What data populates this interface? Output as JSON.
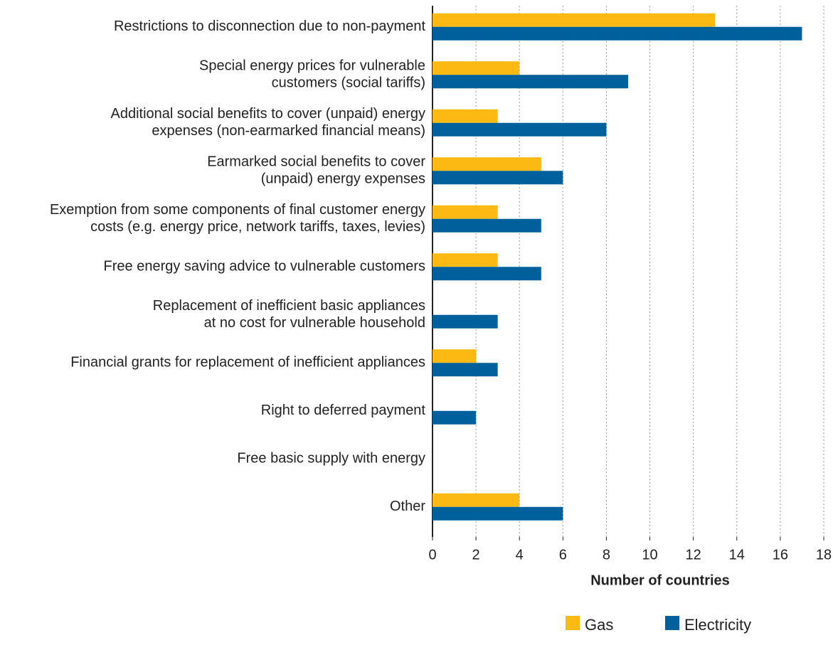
{
  "chart_data": {
    "type": "hbar",
    "categories": [
      "Restrictions to disconnection due to non-payment",
      "Special energy prices for vulnerable\ncustomers (social tariffs)",
      "Additional social benefits to cover (unpaid) energy\nexpenses (non-earmarked financial means)",
      "Earmarked social benefits to cover\n(unpaid) energy expenses",
      "Exemption from some components of final customer energy\ncosts (e.g. energy price, network tariffs, taxes, levies)",
      "Free energy saving advice to vulnerable customers",
      "Replacement of inefficient basic appliances\nat no cost for vulnerable household",
      "Financial grants for replacement of inefficient appliances",
      "Right to deferred payment",
      "Free basic supply with energy",
      "Other"
    ],
    "series": [
      {
        "name": "Gas",
        "color": "#fdb913",
        "values": [
          13,
          4,
          3,
          5,
          3,
          3,
          0,
          2,
          0,
          0,
          4
        ]
      },
      {
        "name": "Electricity",
        "color": "#00609c",
        "values": [
          17,
          9,
          8,
          6,
          5,
          5,
          3,
          3,
          2,
          0,
          6
        ]
      }
    ],
    "xlabel": "Number of countries",
    "xlim": [
      0,
      18
    ],
    "xticks": [
      0,
      2,
      4,
      6,
      8,
      10,
      12,
      14,
      16,
      18
    ],
    "grid": true,
    "legend": "bottom"
  }
}
